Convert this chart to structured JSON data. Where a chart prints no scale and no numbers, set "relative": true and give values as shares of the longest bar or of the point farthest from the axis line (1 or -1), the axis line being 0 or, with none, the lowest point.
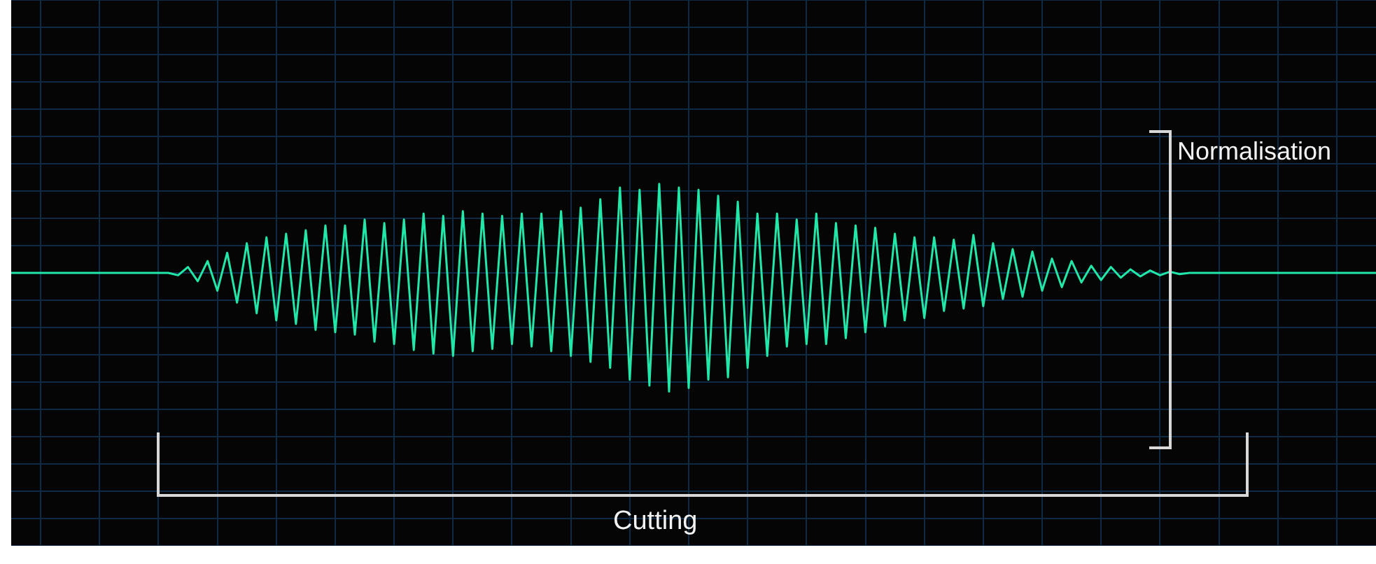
{
  "chart_data": {
    "type": "line",
    "relative": true,
    "grid": true,
    "legend": false,
    "marker": "none",
    "line_style": "solid",
    "categories": [
      null,
      null,
      null,
      null,
      null,
      null,
      null,
      null,
      null,
      null,
      null,
      null,
      null,
      null,
      null,
      null,
      null,
      null,
      null,
      null,
      null,
      null,
      null,
      null,
      null,
      null,
      null,
      null,
      null,
      null,
      null,
      null,
      null,
      null,
      null,
      null,
      null,
      null,
      null,
      null,
      null,
      null,
      null,
      null,
      null,
      null,
      null,
      null,
      null,
      null,
      null,
      null,
      null,
      null,
      null,
      null,
      null,
      null,
      null,
      null,
      null,
      null,
      null,
      null,
      null,
      null,
      null,
      null,
      null,
      null,
      null,
      null,
      null,
      null,
      null,
      null,
      null,
      null,
      null,
      null,
      null,
      null,
      null,
      null,
      null,
      null,
      null,
      null,
      null,
      null,
      null,
      null,
      null,
      null,
      null,
      null,
      null,
      null,
      null,
      null,
      null,
      null,
      null,
      null,
      null,
      null,
      null,
      null,
      null,
      null,
      null,
      null,
      null,
      null,
      null,
      null,
      null,
      null,
      null,
      null,
      null,
      null,
      null,
      null,
      null,
      null,
      null,
      null,
      null,
      null,
      null,
      null,
      null,
      null,
      null,
      null,
      null,
      null,
      null,
      null
    ],
    "series": [
      {
        "color": "#21e8a8",
        "values": [
          0,
          0,
          0,
          0,
          0,
          0,
          0,
          0,
          0,
          0,
          0,
          0,
          0,
          0,
          0,
          0,
          0,
          -0.02,
          0.05,
          -0.07,
          0.1,
          -0.15,
          0.17,
          -0.25,
          0.25,
          -0.34,
          0.3,
          -0.4,
          0.33,
          -0.43,
          0.36,
          -0.48,
          0.4,
          -0.5,
          0.4,
          -0.52,
          0.45,
          -0.58,
          0.42,
          -0.6,
          0.45,
          -0.65,
          0.5,
          -0.68,
          0.48,
          -0.7,
          0.52,
          -0.66,
          0.5,
          -0.64,
          0.48,
          -0.6,
          0.5,
          -0.62,
          0.5,
          -0.66,
          0.52,
          -0.7,
          0.55,
          -0.75,
          0.62,
          -0.8,
          0.72,
          -0.9,
          0.7,
          -0.95,
          0.75,
          -1,
          0.72,
          -0.97,
          0.7,
          -0.9,
          0.65,
          -0.88,
          0.6,
          -0.8,
          0.5,
          -0.7,
          0.5,
          -0.62,
          0.45,
          -0.6,
          0.5,
          -0.6,
          0.42,
          -0.55,
          0.4,
          -0.5,
          0.38,
          -0.45,
          0.33,
          -0.4,
          0.3,
          -0.38,
          0.3,
          -0.32,
          0.28,
          -0.3,
          0.32,
          -0.28,
          0.25,
          -0.22,
          0.2,
          -0.2,
          0.18,
          -0.15,
          0.12,
          -0.12,
          0.1,
          -0.08,
          0.06,
          -0.06,
          0.05,
          -0.04,
          0.03,
          -0.03,
          0.02,
          -0.02,
          0.01,
          -0.01,
          0,
          0,
          0,
          0,
          0,
          0,
          0,
          0,
          0,
          0,
          0,
          0,
          0,
          0,
          0,
          0,
          0,
          0,
          0,
          0
        ]
      }
    ],
    "annotations": [
      "Normalisation",
      "Cutting"
    ]
  }
}
